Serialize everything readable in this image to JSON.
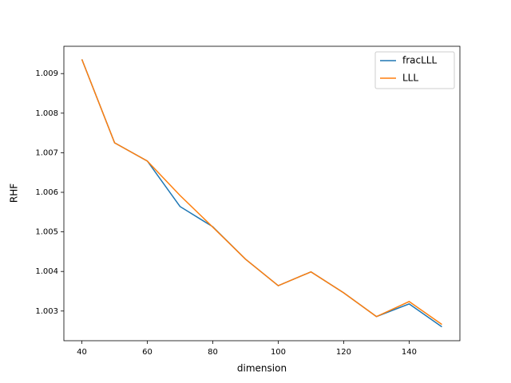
{
  "chart_data": {
    "type": "line",
    "x_label": "dimension",
    "y_label": "RHF",
    "x": [
      40,
      50,
      60,
      70,
      80,
      90,
      100,
      110,
      120,
      130,
      140,
      150
    ],
    "series": [
      {
        "name": "fracLLL",
        "color": "#1f77b4",
        "values": [
          1.00936,
          1.00725,
          1.00679,
          1.00564,
          1.00513,
          1.00431,
          1.00364,
          1.00399,
          1.00346,
          1.00286,
          1.00318,
          1.0026
        ]
      },
      {
        "name": "LLL",
        "color": "#ff7f0e",
        "values": [
          1.00936,
          1.00725,
          1.00679,
          1.00592,
          1.00512,
          1.00431,
          1.00364,
          1.00399,
          1.00346,
          1.00286,
          1.00324,
          1.00266
        ]
      }
    ],
    "xlim": [
      34.5,
      155.5
    ],
    "ylim": [
      1.00225,
      1.00969
    ],
    "xticks": [
      40,
      60,
      80,
      100,
      120,
      140
    ],
    "yticks": [
      1.003,
      1.004,
      1.005,
      1.006,
      1.007,
      1.008,
      1.009
    ],
    "legend": "upper right"
  }
}
